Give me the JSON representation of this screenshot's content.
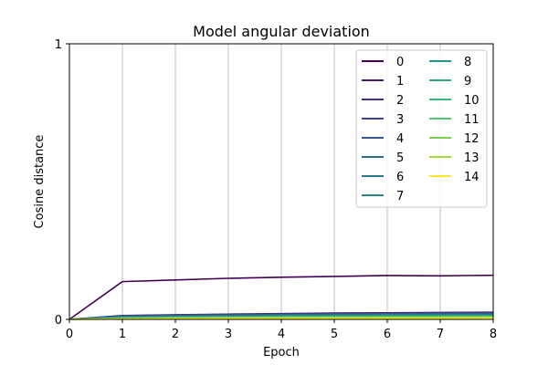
{
  "chart_data": {
    "type": "line",
    "title": "Model angular deviation",
    "xlabel": "Epoch",
    "ylabel": "Cosine distance",
    "x": [
      0,
      1,
      2,
      3,
      4,
      5,
      6,
      7,
      8
    ],
    "xlim": [
      0,
      8
    ],
    "ylim": [
      0,
      1
    ],
    "xticks": [
      "0",
      "1",
      "2",
      "3",
      "4",
      "5",
      "6",
      "7",
      "8"
    ],
    "yticks": [
      "0",
      "1"
    ],
    "grid": "x",
    "legend_position": "top-right",
    "legend_columns": 2,
    "series": [
      {
        "name": "0",
        "color": "#440154",
        "values": [
          0,
          0.137,
          0.143,
          0.149,
          0.153,
          0.156,
          0.159,
          0.158,
          0.16
        ]
      },
      {
        "name": "1",
        "color": "#481a6c",
        "values": [
          0,
          0.014,
          0.017,
          0.019,
          0.021,
          0.023,
          0.024,
          0.025,
          0.026
        ]
      },
      {
        "name": "2",
        "color": "#472f7d",
        "values": [
          0,
          0.013,
          0.016,
          0.018,
          0.02,
          0.021,
          0.022,
          0.023,
          0.024
        ]
      },
      {
        "name": "3",
        "color": "#414487",
        "values": [
          0,
          0.012,
          0.015,
          0.017,
          0.018,
          0.02,
          0.021,
          0.022,
          0.022
        ]
      },
      {
        "name": "4",
        "color": "#39568c",
        "values": [
          0,
          0.011,
          0.014,
          0.015,
          0.017,
          0.018,
          0.019,
          0.02,
          0.021
        ]
      },
      {
        "name": "5",
        "color": "#31688e",
        "values": [
          0,
          0.01,
          0.013,
          0.014,
          0.016,
          0.017,
          0.018,
          0.018,
          0.019
        ]
      },
      {
        "name": "6",
        "color": "#2a788e",
        "values": [
          0,
          0.009,
          0.011,
          0.013,
          0.014,
          0.015,
          0.016,
          0.017,
          0.017
        ]
      },
      {
        "name": "7",
        "color": "#23888e",
        "values": [
          0,
          0.008,
          0.01,
          0.012,
          0.013,
          0.014,
          0.015,
          0.015,
          0.016
        ]
      },
      {
        "name": "8",
        "color": "#1f988b",
        "values": [
          0,
          0.007,
          0.009,
          0.011,
          0.012,
          0.013,
          0.013,
          0.014,
          0.014
        ]
      },
      {
        "name": "9",
        "color": "#22a884",
        "values": [
          0,
          0.006,
          0.008,
          0.009,
          0.01,
          0.011,
          0.012,
          0.012,
          0.013
        ]
      },
      {
        "name": "10",
        "color": "#35b779",
        "values": [
          0,
          0.005,
          0.007,
          0.008,
          0.009,
          0.01,
          0.01,
          0.011,
          0.011
        ]
      },
      {
        "name": "11",
        "color": "#54c568",
        "values": [
          0,
          0.004,
          0.006,
          0.007,
          0.008,
          0.008,
          0.009,
          0.009,
          0.01
        ]
      },
      {
        "name": "12",
        "color": "#7ad151",
        "values": [
          0,
          0.003,
          0.005,
          0.006,
          0.006,
          0.007,
          0.007,
          0.008,
          0.008
        ]
      },
      {
        "name": "13",
        "color": "#a5db36",
        "values": [
          0,
          0.002,
          0.004,
          0.004,
          0.005,
          0.005,
          0.006,
          0.006,
          0.006
        ]
      },
      {
        "name": "14",
        "color": "#fde725",
        "values": [
          0,
          0.001,
          0.002,
          0.003,
          0.003,
          0.004,
          0.004,
          0.004,
          0.005
        ]
      }
    ]
  }
}
